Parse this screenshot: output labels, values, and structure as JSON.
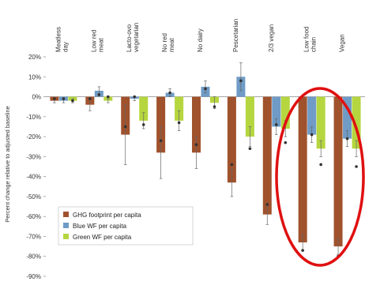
{
  "chart_data": {
    "type": "bar",
    "ylabel": "Percent change relative to adjusted baseline",
    "ylim": [
      -90,
      20
    ],
    "yticks": [
      20,
      10,
      0,
      -10,
      -20,
      -30,
      -40,
      -50,
      -60,
      -70,
      -80,
      -90
    ],
    "ytick_labels": [
      "20%",
      "10%",
      "0%",
      "-10%",
      "-20%",
      "-30%",
      "-40%",
      "-50%",
      "-60%",
      "-70%",
      "-80%",
      "-90%"
    ],
    "grid": false,
    "legend_position": "bottom-left",
    "categories": [
      {
        "lines": [
          "Meatless",
          "day"
        ]
      },
      {
        "lines": [
          "Low red",
          "meat"
        ]
      },
      {
        "lines": [
          "Lacto-ovo",
          "vegetarian"
        ]
      },
      {
        "lines": [
          "No red",
          "meat"
        ]
      },
      {
        "lines": [
          "No dairy"
        ]
      },
      {
        "lines": [
          "Pescetarian"
        ]
      },
      {
        "lines": [
          "2/3 vegan"
        ]
      },
      {
        "lines": [
          "Low food",
          "chain"
        ]
      },
      {
        "lines": [
          "Vegan"
        ]
      }
    ],
    "series": [
      {
        "name": "GHG footprint per capita",
        "color": "#a0522d",
        "values": [
          -2,
          -4,
          -19,
          -28,
          -28,
          -43,
          -59,
          -73,
          -75
        ],
        "error": [
          1,
          3,
          15,
          13,
          8,
          7,
          5,
          4,
          4
        ]
      },
      {
        "name": "Blue WF per capita",
        "color": "#6f9bc6",
        "values": [
          -2,
          3,
          -1,
          2,
          5,
          10,
          -15,
          -19,
          -21
        ],
        "error": [
          1,
          2,
          1,
          2,
          3,
          7,
          4,
          4,
          4
        ]
      },
      {
        "name": "Green WF per capita",
        "color": "#b5d63e",
        "values": [
          -2,
          -2,
          -12,
          -12,
          -3,
          -20,
          -16,
          -26,
          -26
        ],
        "error": [
          1,
          1,
          4,
          5,
          3,
          5,
          4,
          4,
          4
        ]
      }
    ],
    "markers": {
      "color": "#333333",
      "values": [
        [
          -1,
          -1,
          -2
        ],
        [
          -1,
          1,
          0
        ],
        [
          -15,
          0,
          -14
        ],
        [
          -22,
          2,
          -13
        ],
        [
          -24,
          4,
          -5
        ],
        [
          -34,
          8,
          -26
        ],
        [
          -54,
          -14,
          -23
        ],
        [
          -77,
          -19,
          -34
        ],
        [
          -80,
          -21,
          -35
        ]
      ]
    }
  }
}
